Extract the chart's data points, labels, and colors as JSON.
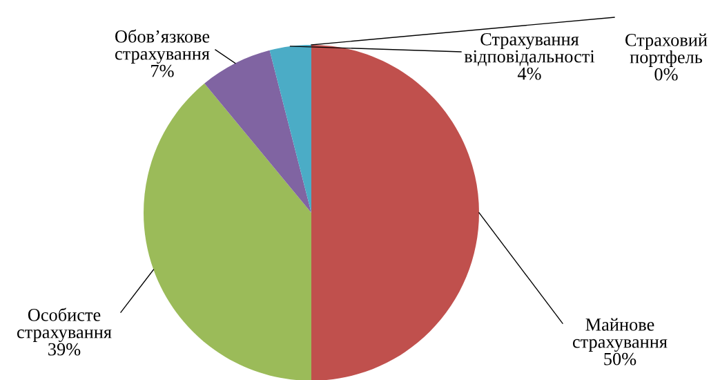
{
  "chart_data": {
    "type": "pie",
    "categories": [
      "Майнове\nстрахування",
      "Особисте\nстрахування",
      "Обов’язкове\nстрахування",
      "Страхування\nвідповідальності",
      "Страховий\nпортфель"
    ],
    "values": [
      50,
      39,
      7,
      4,
      0
    ],
    "colors": [
      "#c0504d",
      "#9bbb59",
      "#8064a2",
      "#4bacc6",
      "#f79646"
    ],
    "value_labels": [
      "50%",
      "39%",
      "7%",
      "4%",
      "0%"
    ],
    "legend": false
  }
}
